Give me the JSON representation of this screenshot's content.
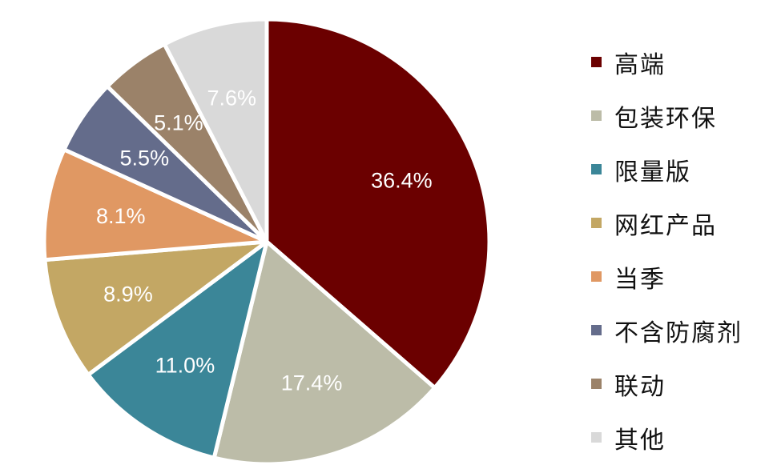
{
  "chart_data": {
    "type": "pie",
    "title": "",
    "start_angle_deg": 0,
    "direction": "clockwise",
    "label_format": "percent_1dp",
    "legend_position": "right",
    "slices": [
      {
        "label": "高端",
        "value": 36.4,
        "color": "#6b0000"
      },
      {
        "label": "包装环保",
        "value": 17.4,
        "color": "#bcbca8"
      },
      {
        "label": "限量版",
        "value": 11.0,
        "color": "#3b8698"
      },
      {
        "label": "网红产品",
        "value": 8.9,
        "color": "#c3a764"
      },
      {
        "label": "当季",
        "value": 8.1,
        "color": "#e09863"
      },
      {
        "label": "不含防腐剂",
        "value": 5.5,
        "color": "#646c8b"
      },
      {
        "label": "联动",
        "value": 5.1,
        "color": "#9b8269"
      },
      {
        "label": "其他",
        "value": 7.6,
        "color": "#d9d9d9"
      }
    ]
  }
}
